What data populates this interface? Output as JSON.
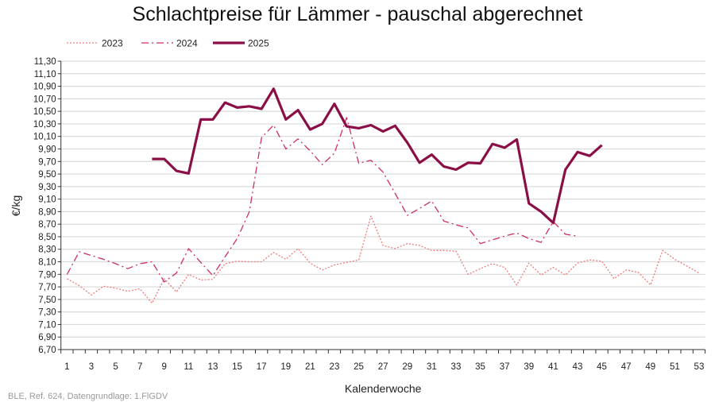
{
  "chart_data": {
    "type": "line",
    "title": "Schlachtpreise für Lämmer - pauschal abgerechnet",
    "xlabel": "Kalenderwoche",
    "ylabel": "€/kg",
    "ylim": [
      6.7,
      11.3
    ],
    "ystep": 0.2,
    "xlim": [
      1,
      53
    ],
    "xtick_labels": [
      "1",
      "3",
      "5",
      "7",
      "9",
      "11",
      "13",
      "15",
      "17",
      "19",
      "21",
      "23",
      "25",
      "27",
      "29",
      "31",
      "33",
      "35",
      "37",
      "39",
      "41",
      "43",
      "45",
      "47",
      "49",
      "51",
      "53"
    ],
    "grid": "horizontal",
    "legend_position": "top-left",
    "series": [
      {
        "name": "2023",
        "style": "dotted",
        "color": "#ef7b7b",
        "start_week": 1,
        "values": [
          7.83,
          7.72,
          7.57,
          7.71,
          7.68,
          7.63,
          7.67,
          7.44,
          7.83,
          7.62,
          7.9,
          7.81,
          7.82,
          8.07,
          8.11,
          8.1,
          8.1,
          8.25,
          8.14,
          8.31,
          8.08,
          7.97,
          8.05,
          8.09,
          8.13,
          8.83,
          8.36,
          8.31,
          8.39,
          8.36,
          8.28,
          8.28,
          8.27,
          7.9,
          7.99,
          8.07,
          8.01,
          7.73,
          8.08,
          7.89,
          8.01,
          7.89,
          8.08,
          8.13,
          8.11,
          7.83,
          7.97,
          7.93,
          7.73,
          8.28,
          8.14,
          8.03,
          7.92
        ]
      },
      {
        "name": "2024",
        "style": "dashdot",
        "color": "#cc2f66",
        "start_week": 1,
        "values": [
          7.9,
          8.26,
          8.2,
          8.14,
          8.07,
          7.99,
          8.07,
          8.1,
          7.78,
          7.92,
          8.31,
          8.09,
          7.88,
          8.18,
          8.47,
          8.9,
          10.08,
          10.28,
          9.9,
          10.06,
          9.87,
          9.65,
          9.83,
          10.4,
          9.67,
          9.72,
          9.53,
          9.19,
          8.84,
          8.95,
          9.07,
          8.75,
          8.69,
          8.64,
          8.39,
          8.45,
          8.51,
          8.56,
          8.47,
          8.41,
          8.74,
          8.54,
          8.51
        ]
      },
      {
        "name": "2025",
        "style": "solid",
        "color": "#8b0f47",
        "start_week": 8,
        "values": [
          9.74,
          9.74,
          9.55,
          9.51,
          10.37,
          10.37,
          10.64,
          10.56,
          10.58,
          10.54,
          10.86,
          10.37,
          10.52,
          10.21,
          10.3,
          10.62,
          10.26,
          10.23,
          10.28,
          10.18,
          10.27,
          10.0,
          9.68,
          9.81,
          9.62,
          9.57,
          9.68,
          9.67,
          9.98,
          9.92,
          10.05,
          9.03,
          8.9,
          8.72,
          9.57,
          9.85,
          9.79,
          9.96
        ]
      }
    ]
  },
  "footer": "BLE, Ref. 624, Datengrundlage: 1.FlGDV"
}
